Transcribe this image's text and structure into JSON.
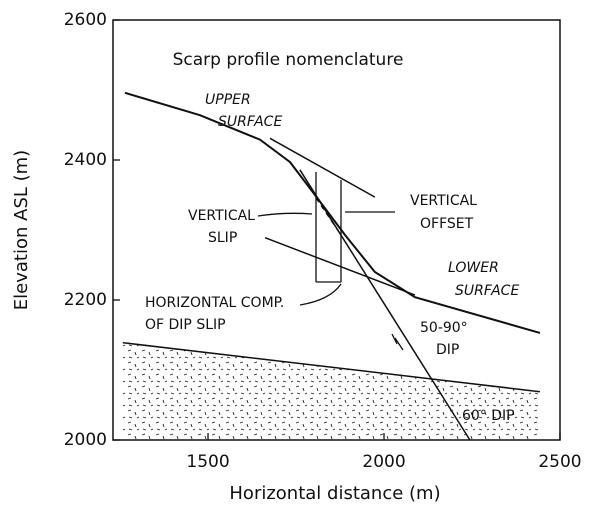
{
  "chart_data": {
    "type": "line",
    "title": "Scarp profile nomenclature",
    "xlabel": "Horizontal distance (m)",
    "ylabel": "Elevation ASL (m)",
    "xlim": [
      1230,
      2500
    ],
    "ylim": [
      2000,
      2600
    ],
    "xticks": [
      1500,
      2000,
      2500
    ],
    "yticks": [
      2000,
      2200,
      2400,
      2600
    ],
    "color": "#111111",
    "series": [
      {
        "x": [
          1264,
          1477,
          1648,
          1733,
          1804,
          1889,
          1974,
          2088,
          2443
        ],
        "values": [
          2496,
          2464,
          2429,
          2397,
          2350,
          2293,
          2240,
          2204,
          2153
        ]
      },
      {
        "x": [
          1761,
          2244
        ],
        "values": [
          2386,
          2000
        ]
      },
      {
        "x": [
          1676,
          1974
        ],
        "values": [
          2431,
          2347
        ]
      },
      {
        "x": [
          1662,
          2088
        ],
        "values": [
          2289,
          2207
        ]
      },
      {
        "x": [
          1258,
          2443
        ],
        "values": [
          2139,
          2069
        ]
      }
    ],
    "annotations": [
      "UPPER",
      "SURFACE",
      "VERTICAL",
      "SLIP",
      "VERTICAL",
      "OFFSET",
      "LOWER",
      "SURFACE",
      "HORIZONTAL COMP.",
      "OF DIP SLIP",
      "50-90°",
      "DIP",
      "60° DIP"
    ]
  }
}
